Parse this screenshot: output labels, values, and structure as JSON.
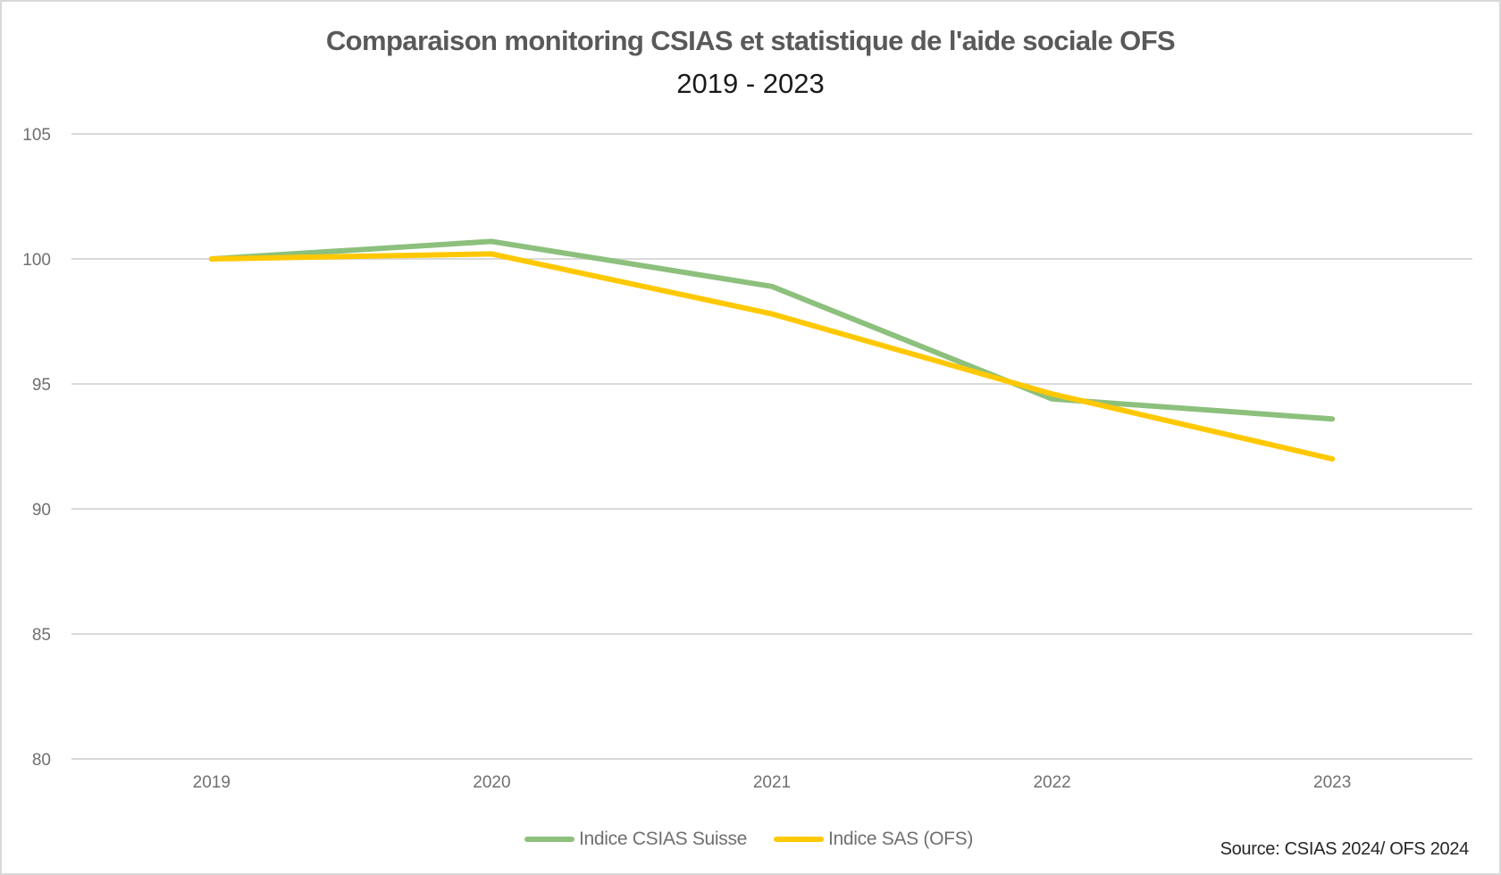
{
  "chart_data": {
    "type": "line",
    "title": "Comparaison monitoring CSIAS et statistique de l'aide sociale OFS",
    "subtitle": "2019 - 2023",
    "xlabel": "",
    "ylabel": "",
    "categories": [
      "2019",
      "2020",
      "2021",
      "2022",
      "2023"
    ],
    "series": [
      {
        "name": "Indice CSIAS Suisse",
        "color": "#8cc07c",
        "values": [
          100,
          100.7,
          98.9,
          94.4,
          93.6
        ]
      },
      {
        "name": "Indice SAS (OFS)",
        "color": "#ffc800",
        "values": [
          100,
          100.2,
          97.8,
          94.6,
          92.0
        ]
      }
    ],
    "ylim": [
      80,
      105
    ],
    "yticks": [
      80,
      85,
      90,
      95,
      100,
      105
    ],
    "grid": true,
    "legend": "bottom",
    "annotation": "Source: CSIAS 2024/ OFS 2024"
  },
  "colors": {
    "gridline": "#d9d9d9",
    "axis": "#d9d9d9"
  }
}
